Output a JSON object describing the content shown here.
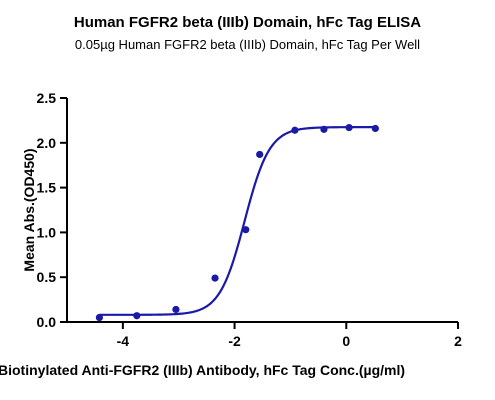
{
  "chart_data": {
    "type": "scatter",
    "title": "Human FGFR2 beta (IIIb) Domain, hFc Tag ELISA",
    "subtitle": "0.05µg Human FGFR2 beta (IIIb)  Domain, hFc Tag Per Well",
    "xlabel": "Biotinylated Anti-FGFR2 (IIIb) Antibody, hFc Tag Conc.(µg/ml)",
    "ylabel": "Mean Abs.(OD450)",
    "xlim": [
      -5,
      2
    ],
    "ylim": [
      0,
      2.5
    ],
    "x_ticks": [
      -4,
      -2,
      0,
      2
    ],
    "x_tick_labels": [
      "-4",
      "-2",
      "0",
      "2"
    ],
    "y_ticks": [
      0,
      0.5,
      1.0,
      1.5,
      2.0,
      2.5
    ],
    "y_tick_labels": [
      "0.0",
      "0.5",
      "1.0",
      "1.5",
      "2.0",
      "2.5"
    ],
    "grid": false,
    "series": [
      {
        "x": [
          -4.42,
          -3.75,
          -3.05,
          -2.35,
          -1.8,
          -1.55,
          -0.92,
          -0.4,
          0.05,
          0.52
        ],
        "y": [
          0.05,
          0.07,
          0.14,
          0.49,
          1.03,
          1.87,
          2.14,
          2.15,
          2.17,
          2.16
        ],
        "fit": "sigmoidal",
        "fit_params": {
          "bottom": 0.08,
          "top": 2.175,
          "logEC50": -1.82,
          "hill": 1.95
        }
      }
    ],
    "colors": {
      "series": "#1a1aa6",
      "axis": "#000000"
    }
  }
}
